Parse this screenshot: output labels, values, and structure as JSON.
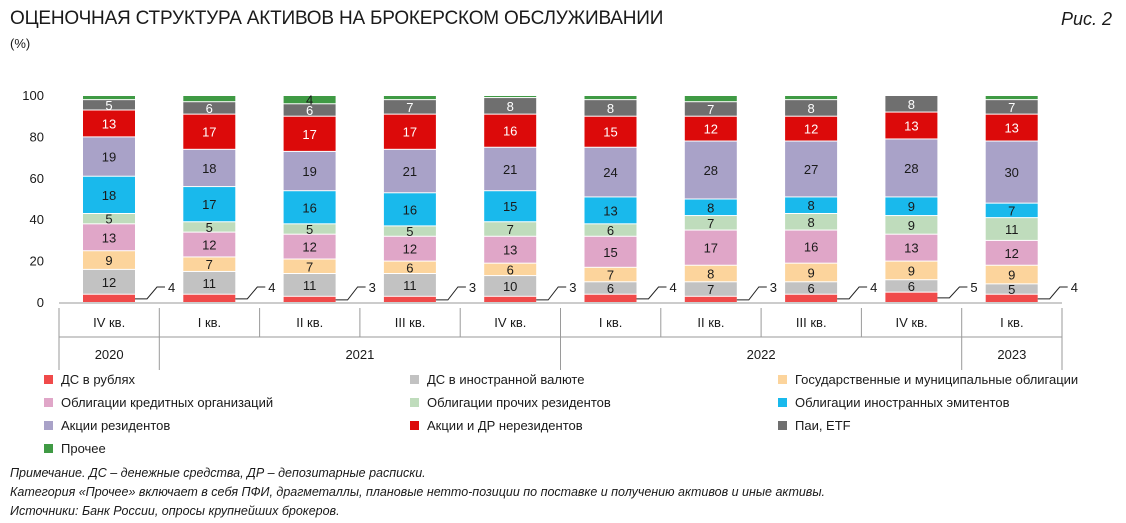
{
  "header": {
    "title": "ОЦЕНОЧНАЯ СТРУКТУРА АКТИВОВ НА БРОКЕРСКОМ ОБСЛУЖИВАНИИ",
    "unit": "(%)",
    "figure_label": "Рис. 2"
  },
  "chart_data": {
    "type": "bar",
    "stacked": true,
    "ylim": [
      0,
      100
    ],
    "yticks": [
      0,
      20,
      40,
      60,
      80,
      100
    ],
    "grid": false,
    "categories": [
      "IV кв.",
      "I кв.",
      "II кв.",
      "III кв.",
      "IV кв.",
      "I кв.",
      "II кв.",
      "III кв.",
      "IV кв.",
      "I кв."
    ],
    "year_groups": [
      {
        "label": "2020",
        "count": 1
      },
      {
        "label": "2021",
        "count": 4
      },
      {
        "label": "2022",
        "count": 4
      },
      {
        "label": "2023",
        "count": 1
      }
    ],
    "series": [
      {
        "name": "ДС в рублях",
        "color": "#f04a4a",
        "values": [
          4,
          4,
          3,
          3,
          3,
          4,
          3,
          4,
          5,
          4
        ],
        "label_outside": true
      },
      {
        "name": "ДС в иностранной валюте",
        "color": "#c2c2c2",
        "values": [
          12,
          11,
          11,
          11,
          10,
          6,
          7,
          6,
          6,
          5
        ]
      },
      {
        "name": "Государственные и муниципальные облигации",
        "color": "#fcd49c",
        "values": [
          9,
          7,
          7,
          6,
          6,
          7,
          8,
          9,
          9,
          9
        ]
      },
      {
        "name": "Облигации кредитных организаций",
        "color": "#e0a6c8",
        "values": [
          13,
          12,
          12,
          12,
          13,
          15,
          17,
          16,
          13,
          12
        ]
      },
      {
        "name": "Облигации прочих резидентов",
        "color": "#bfdcbc",
        "values": [
          5,
          5,
          5,
          5,
          7,
          6,
          7,
          8,
          9,
          11
        ]
      },
      {
        "name": "Облигации иностранных эмитентов",
        "color": "#19b9ec",
        "values": [
          18,
          17,
          16,
          16,
          15,
          13,
          8,
          8,
          9,
          7
        ]
      },
      {
        "name": "Акции резидентов",
        "color": "#a9a2c8",
        "values": [
          19,
          18,
          19,
          21,
          21,
          24,
          28,
          27,
          28,
          30
        ]
      },
      {
        "name": "Акции и ДР нерезидентов",
        "color": "#dc0a0a",
        "values": [
          13,
          17,
          17,
          17,
          16,
          15,
          12,
          12,
          13,
          13
        ]
      },
      {
        "name": "Паи, ETF",
        "color": "#6f6f6f",
        "values": [
          5,
          6,
          6,
          7,
          8,
          8,
          7,
          8,
          8,
          7
        ]
      },
      {
        "name": "Прочее",
        "color": "#3f9a44",
        "values": [
          2,
          3,
          4,
          2,
          1,
          2,
          3,
          2,
          0,
          2
        ]
      }
    ]
  },
  "notes": {
    "note": "Примечание. ДС – денежные средства, ДР – депозитарные расписки.",
    "category": "Категория «Прочее» включает в себя ПФИ, драгметаллы, плановые нетто-позиции по поставке и получению активов и иные активы.",
    "sources": "Источники: Банк России, опросы крупнейших брокеров."
  }
}
